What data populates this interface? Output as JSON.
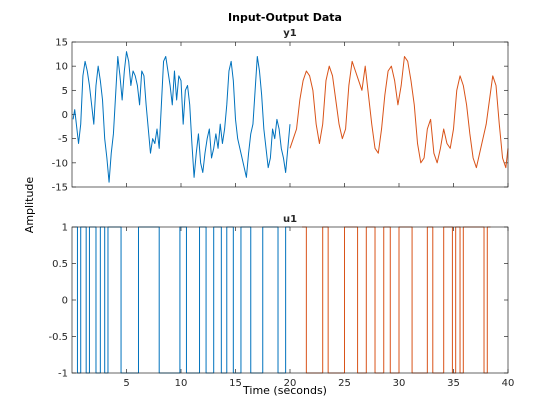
{
  "chart_data": {
    "type": "line",
    "title": "Input-Output Data",
    "ylabel": "Amplitude",
    "xlabel": "Time (seconds)",
    "colors": {
      "estimation": "#0072BD",
      "validation": "#D95319"
    },
    "panels": [
      {
        "name": "y1",
        "title": "y1",
        "ylim": [
          -15,
          15
        ],
        "yticks": [
          -15,
          -10,
          -5,
          0,
          5,
          10,
          15
        ],
        "xlim": [
          0,
          40
        ],
        "xticks": [
          5,
          10,
          15,
          20,
          25,
          30,
          35,
          40
        ],
        "show_xticklabels": false,
        "series": [
          {
            "segment": "estimation",
            "x": [
              0.1,
              0.25,
              0.45,
              0.6,
              0.8,
              1.0,
              1.2,
              1.4,
              1.6,
              1.8,
              2.0,
              2.2,
              2.4,
              2.6,
              2.8,
              3.0,
              3.2,
              3.4,
              3.6,
              3.8,
              4.0,
              4.2,
              4.4,
              4.6,
              4.8,
              5.0,
              5.2,
              5.4,
              5.6,
              5.8,
              6.0,
              6.2,
              6.4,
              6.6,
              6.8,
              7.0,
              7.2,
              7.4,
              7.6,
              7.8,
              8.0,
              8.2,
              8.4,
              8.6,
              8.8,
              9.0,
              9.2,
              9.4,
              9.6,
              9.8,
              10.0,
              10.2,
              10.4,
              10.6,
              10.8,
              11.0,
              11.2,
              11.4,
              11.6,
              11.8,
              12.0,
              12.2,
              12.4,
              12.6,
              12.8,
              13.0,
              13.2,
              13.4,
              13.6,
              13.8,
              14.0,
              14.2,
              14.4,
              14.6,
              14.8,
              15.0,
              15.2,
              15.4,
              15.6,
              15.8,
              16.0,
              16.2,
              16.4,
              16.6,
              16.8,
              17.0,
              17.2,
              17.4,
              17.6,
              17.8,
              18.0,
              18.2,
              18.4,
              18.6,
              18.8,
              19.0,
              19.2,
              19.4,
              19.6,
              19.8,
              20.0
            ],
            "values": [
              -1,
              1,
              -3,
              -6,
              -2,
              8,
              11,
              9,
              6,
              2,
              -2,
              6,
              10,
              7,
              3,
              -5,
              -9,
              -14,
              -8,
              -4,
              4,
              12,
              8,
              3,
              9,
              13,
              11,
              6,
              9,
              8,
              6,
              2,
              9,
              8,
              2,
              -3,
              -8,
              -5,
              -6,
              -3,
              -7,
              2,
              11,
              12,
              9,
              6,
              2,
              9,
              3,
              8,
              7,
              -2,
              5,
              6,
              2,
              -6,
              -13,
              -8,
              -4,
              -10,
              -12,
              -8,
              -5,
              -3,
              -9,
              -7,
              -4,
              -7,
              -2,
              -6,
              -3,
              2,
              9,
              11,
              7,
              -1,
              -5,
              -7,
              -9,
              -11,
              -13,
              -8,
              -4,
              -2,
              5,
              12,
              9,
              4,
              -3,
              -7,
              -11,
              -9,
              -3,
              -5,
              -1,
              -3,
              -7,
              -9,
              -12,
              -7,
              -2
            ]
          },
          {
            "segment": "validation",
            "x": [
              20.0,
              20.3,
              20.6,
              20.9,
              21.2,
              21.5,
              21.8,
              22.1,
              22.4,
              22.7,
              23.0,
              23.3,
              23.6,
              23.9,
              24.2,
              24.5,
              24.8,
              25.1,
              25.4,
              25.7,
              26.0,
              26.3,
              26.6,
              26.9,
              27.2,
              27.5,
              27.8,
              28.1,
              28.4,
              28.7,
              29.0,
              29.3,
              29.6,
              29.9,
              30.2,
              30.5,
              30.8,
              31.1,
              31.4,
              31.7,
              32.0,
              32.3,
              32.6,
              32.9,
              33.2,
              33.5,
              33.8,
              34.1,
              34.4,
              34.7,
              35.0,
              35.3,
              35.6,
              35.9,
              36.2,
              36.5,
              36.8,
              37.1,
              37.4,
              37.7,
              38.0,
              38.3,
              38.6,
              38.9,
              39.2,
              39.5,
              39.8,
              40.0
            ],
            "values": [
              -7,
              -5,
              -3,
              3,
              7,
              9,
              8,
              5,
              -2,
              -6,
              -2,
              7,
              10,
              8,
              3,
              -2,
              -5,
              -3,
              6,
              11,
              9,
              7,
              5,
              10,
              4,
              -2,
              -7,
              -8,
              -3,
              4,
              9,
              10,
              7,
              2,
              6,
              12,
              11,
              7,
              2,
              -6,
              -10,
              -9,
              -3,
              -1,
              -8,
              -10,
              -7,
              -3,
              -6,
              -7,
              -3,
              5,
              8,
              6,
              2,
              -4,
              -9,
              -11,
              -8,
              -5,
              -2,
              3,
              8,
              6,
              -2,
              -9,
              -11,
              -7
            ]
          }
        ]
      },
      {
        "name": "u1",
        "title": "u1",
        "ylim": [
          -1,
          1
        ],
        "yticks": [
          -1,
          -0.5,
          0,
          0.5,
          1
        ],
        "xlim": [
          0,
          40
        ],
        "xticks": [
          5,
          10,
          15,
          20,
          25,
          30,
          35,
          40
        ],
        "show_xticklabels": true,
        "series": [
          {
            "segment": "estimation",
            "switch_times": [
              0.3,
              0.5,
              0.8,
              1.3,
              1.6,
              2.2,
              2.6,
              3.0,
              3.3,
              4.5,
              6.1,
              8.0,
              9.9,
              10.5,
              11.7,
              12.3,
              13.0,
              13.7,
              14.2,
              14.8,
              15.5,
              16.4,
              17.5,
              18.9,
              19.6,
              20.0
            ],
            "start_value": 1
          },
          {
            "segment": "validation",
            "switch_times": [
              21.1,
              21.5,
              23.0,
              23.5,
              25.0,
              26.2,
              27.0,
              27.8,
              28.6,
              29.2,
              30.0,
              31.2,
              32.6,
              33.1,
              34.1,
              34.9,
              35.2,
              35.6,
              35.9,
              37.8,
              38.1,
              38.4
            ],
            "start_value": 1
          }
        ]
      }
    ]
  }
}
